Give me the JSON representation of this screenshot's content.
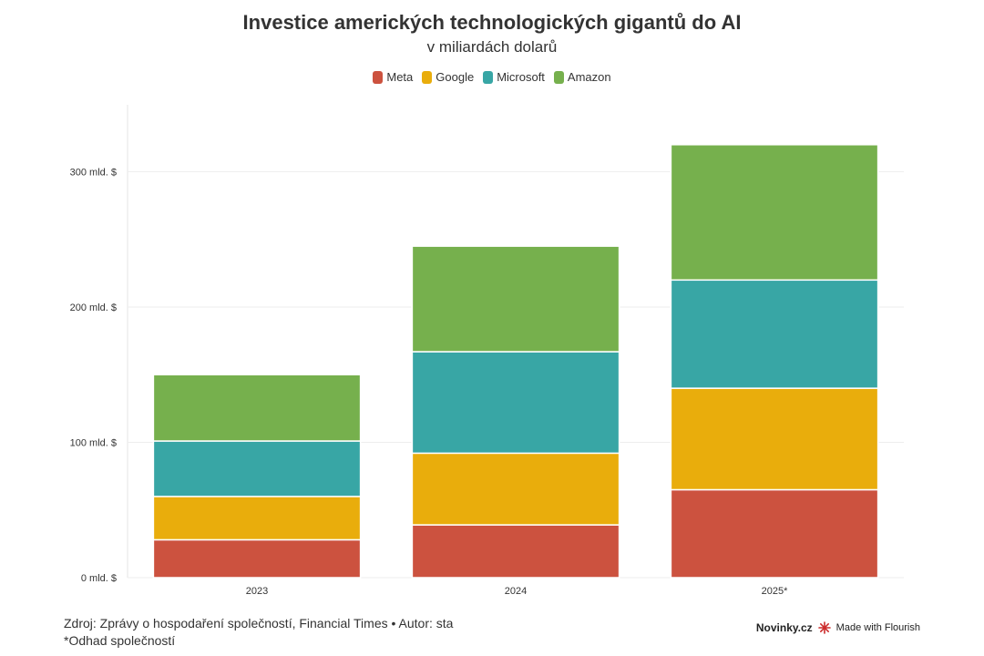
{
  "chart_data": {
    "type": "bar",
    "stacked": true,
    "title": "Investice amerických technologických gigantů do AI",
    "subtitle": "v miliardách dolarů",
    "categories": [
      "2023",
      "2024",
      "2025*"
    ],
    "series": [
      {
        "name": "Meta",
        "color": "#cc523f",
        "values": [
          28,
          39,
          65
        ]
      },
      {
        "name": "Google",
        "color": "#e9ad0c",
        "values": [
          32,
          53,
          75
        ]
      },
      {
        "name": "Microsoft",
        "color": "#38a6a5",
        "values": [
          41,
          75,
          80
        ]
      },
      {
        "name": "Amazon",
        "color": "#76b04d",
        "values": [
          49,
          78,
          100
        ]
      }
    ],
    "ylim": [
      0,
      350
    ],
    "yticks": [
      {
        "value": 0,
        "label": "0 mld. $"
      },
      {
        "value": 100,
        "label": "100 mld. $"
      },
      {
        "value": 200,
        "label": "200 mld. $"
      },
      {
        "value": 300,
        "label": "300 mld. $"
      }
    ],
    "legend_position": "top",
    "grid": true
  },
  "legend": {
    "items": [
      "Meta",
      "Google",
      "Microsoft",
      "Amazon"
    ]
  },
  "footer": {
    "source": "Zdroj: Zprávy o hospodaření společností, Financial Times • Autor: sta",
    "note": "*Odhad společností"
  },
  "credit": {
    "brand": "Novinky.cz",
    "made_with": "Made with Flourish"
  }
}
